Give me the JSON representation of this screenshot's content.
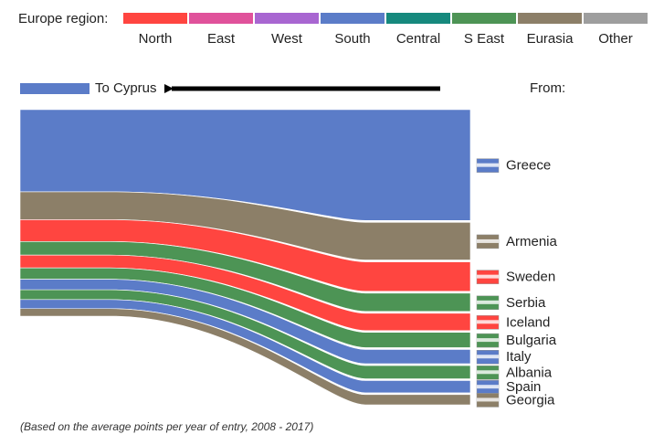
{
  "legend": {
    "title": "Europe region:",
    "regions": [
      {
        "name": "North",
        "color": "#ff4540"
      },
      {
        "name": "East",
        "color": "#e0529b"
      },
      {
        "name": "West",
        "color": "#a866d1"
      },
      {
        "name": "South",
        "color": "#5b7cc8"
      },
      {
        "name": "Central",
        "color": "#16897d"
      },
      {
        "name": "S East",
        "color": "#4d9455"
      },
      {
        "name": "Eurasia",
        "color": "#8c7f68"
      },
      {
        "name": "Other",
        "color": "#9e9e9e"
      }
    ]
  },
  "destination": {
    "label": "To Cyprus",
    "color": "#5b7cc8"
  },
  "from_label": "From:",
  "footnote": "(Based on the average points per year of entry, 2008 - 2017)",
  "chart_data": {
    "type": "sankey",
    "target": "Cyprus",
    "flows": [
      {
        "country": "Greece",
        "region": "South",
        "value": 10.9,
        "flag": "greece-flag-icon"
      },
      {
        "country": "Armenia",
        "region": "Eurasia",
        "value": 3.7,
        "flag": "armenia-flag-icon"
      },
      {
        "country": "Sweden",
        "region": "North",
        "value": 2.9,
        "flag": "sweden-flag-icon"
      },
      {
        "country": "Serbia",
        "region": "S East",
        "value": 1.8,
        "flag": "serbia-flag-icon"
      },
      {
        "country": "Iceland",
        "region": "North",
        "value": 1.7,
        "flag": "iceland-flag-icon"
      },
      {
        "country": "Bulgaria",
        "region": "S East",
        "value": 1.5,
        "flag": "bulgaria-flag-icon"
      },
      {
        "country": "Italy",
        "region": "South",
        "value": 1.4,
        "flag": "italy-flag-icon"
      },
      {
        "country": "Albania",
        "region": "S East",
        "value": 1.3,
        "flag": "albania-flag-icon"
      },
      {
        "country": "Spain",
        "region": "South",
        "value": 1.2,
        "flag": "spain-flag-icon"
      },
      {
        "country": "Georgia",
        "region": "Eurasia",
        "value": 1.0,
        "flag": "georgia-flag-icon"
      }
    ]
  }
}
